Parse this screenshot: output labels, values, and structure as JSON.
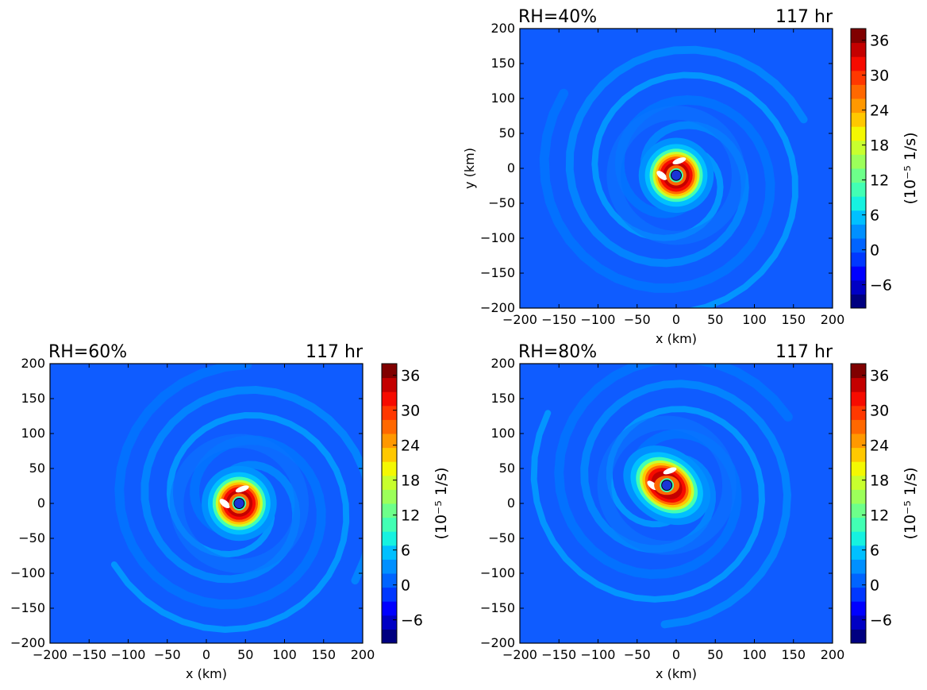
{
  "chart_data": [
    {
      "type": "heatmap",
      "title_left": "RH=40%",
      "title_right": "117 hr",
      "xlabel": "x (km)",
      "ylabel": "y (km)",
      "xlim": [
        -200,
        200
      ],
      "ylim": [
        -200,
        200
      ],
      "xticks": [
        -200,
        -150,
        -100,
        -50,
        0,
        50,
        100,
        150,
        200
      ],
      "yticks": [
        -200,
        -150,
        -100,
        -50,
        0,
        50,
        100,
        150,
        200
      ],
      "center": [
        0,
        -10
      ],
      "colorbar": {
        "label": "(10⁻⁵ 1/s)",
        "range": [
          -10,
          38
        ],
        "ticks": [
          -6,
          0,
          6,
          12,
          18,
          24,
          30,
          36
        ],
        "tick_labels": [
          "−6",
          "0",
          "6",
          "12",
          "18",
          "24",
          "30",
          "36"
        ]
      }
    },
    {
      "type": "heatmap",
      "title_left": "RH=60%",
      "title_right": "117 hr",
      "xlabel": "x (km)",
      "ylabel": "",
      "xlim": [
        -200,
        200
      ],
      "ylim": [
        -200,
        200
      ],
      "xticks": [
        -200,
        -150,
        -100,
        -50,
        0,
        50,
        100,
        150,
        200
      ],
      "yticks": [
        -200,
        -150,
        -100,
        -50,
        0,
        50,
        100,
        150,
        200
      ],
      "center": [
        42,
        0
      ],
      "colorbar": {
        "label": "(10⁻⁵ 1/s)",
        "range": [
          -10,
          38
        ],
        "ticks": [
          -6,
          0,
          6,
          12,
          18,
          24,
          30,
          36
        ],
        "tick_labels": [
          "−6",
          "0",
          "6",
          "12",
          "18",
          "24",
          "30",
          "36"
        ]
      }
    },
    {
      "type": "heatmap",
      "title_left": "RH=80%",
      "title_right": "117 hr",
      "xlabel": "x (km)",
      "ylabel": "",
      "xlim": [
        -200,
        200
      ],
      "ylim": [
        -200,
        200
      ],
      "xticks": [
        -200,
        -150,
        -100,
        -50,
        0,
        50,
        100,
        150,
        200
      ],
      "yticks": [
        -200,
        -150,
        -100,
        -50,
        0,
        50,
        100,
        150,
        200
      ],
      "center": [
        -12,
        26
      ],
      "colorbar": {
        "label": "(10⁻⁵ 1/s)",
        "range": [
          -10,
          38
        ],
        "ticks": [
          -6,
          0,
          6,
          12,
          18,
          24,
          30,
          36
        ],
        "tick_labels": [
          "−6",
          "0",
          "6",
          "12",
          "18",
          "24",
          "30",
          "36"
        ]
      }
    }
  ],
  "colors": {
    "background_field": "#0f5cff",
    "center_marker": "#1a34d6",
    "colormap": [
      "#000080",
      "#0000c4",
      "#0000ff",
      "#0038ff",
      "#0064ff",
      "#0090ff",
      "#00c0ff",
      "#16f2e0",
      "#42ffb4",
      "#6dff8a",
      "#9cff5a",
      "#c8ff2e",
      "#f4f802",
      "#ffc800",
      "#ff9800",
      "#ff6800",
      "#ff3800",
      "#f60b00",
      "#c40000",
      "#800000"
    ]
  }
}
